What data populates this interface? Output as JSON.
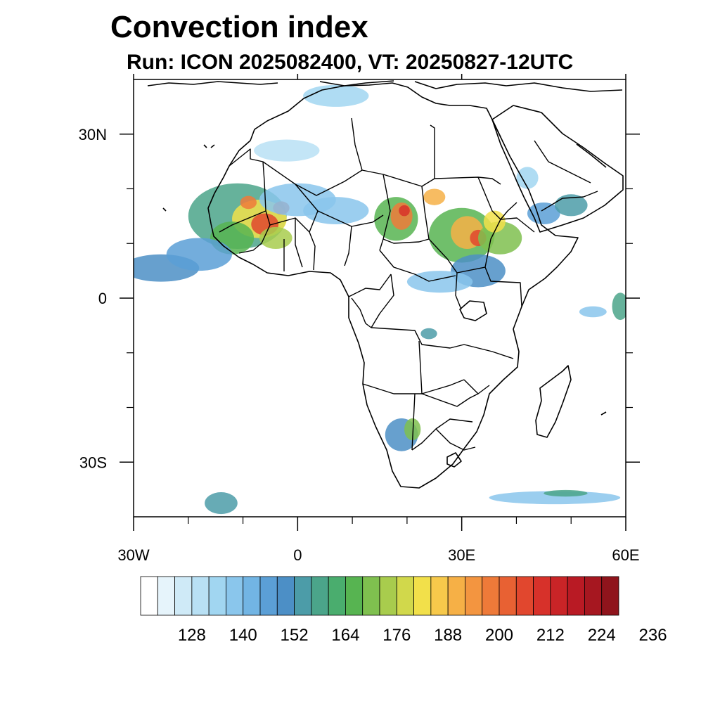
{
  "header": {
    "title": "Convection index",
    "subtitle": "Run: ICON 2025082400,  VT: 20250827-12UTC"
  },
  "map": {
    "projection": "cylindrical equidistant",
    "lon_range": [
      -30,
      60
    ],
    "lat_range": [
      -40,
      40
    ],
    "x_ticks": [
      {
        "value": -30,
        "label": "30W"
      },
      {
        "value": 0,
        "label": "0"
      },
      {
        "value": 30,
        "label": "30E"
      },
      {
        "value": 60,
        "label": "60E"
      }
    ],
    "y_ticks": [
      {
        "value": 30,
        "label": "30N"
      },
      {
        "value": 0,
        "label": "0"
      },
      {
        "value": -30,
        "label": "30S"
      }
    ],
    "minor_x_ticks": [
      -20,
      -10,
      10,
      20,
      40,
      50
    ],
    "minor_y_ticks": [
      -20,
      -10,
      10,
      20
    ]
  },
  "colorbar": {
    "colors": [
      "#ffffff",
      "#e6f4fb",
      "#cfeaf7",
      "#b8e0f4",
      "#a1d6f1",
      "#8ac6ec",
      "#72b5e4",
      "#5b9fd6",
      "#4c8fc6",
      "#4c9ca8",
      "#4ba58a",
      "#4aad6e",
      "#57b451",
      "#7fc04f",
      "#a8cc4d",
      "#d1d84b",
      "#f2e04a",
      "#f7c94b",
      "#f6b046",
      "#f39540",
      "#ee7a39",
      "#e86133",
      "#e1472e",
      "#d7312a",
      "#c92427",
      "#b91a24",
      "#a61720",
      "#8f141c"
    ],
    "tick_labels": [
      "128",
      "140",
      "152",
      "164",
      "176",
      "188",
      "200",
      "212",
      "224",
      "236"
    ],
    "label_start_index": 2,
    "label_every": 3
  },
  "field": {
    "blobs": [
      {
        "lon": -11,
        "lat": 15,
        "rlon": 9,
        "rlat": 6,
        "level": 10
      },
      {
        "lon": -7,
        "lat": 14.5,
        "rlon": 5,
        "rlat": 3.5,
        "level": 16
      },
      {
        "lon": -6,
        "lat": 13.5,
        "rlon": 2.5,
        "rlat": 2,
        "level": 22
      },
      {
        "lon": -3,
        "lat": 16.5,
        "rlon": 1.5,
        "rlat": 1.2,
        "level": 22
      },
      {
        "lon": -9,
        "lat": 17.5,
        "rlon": 1.5,
        "rlat": 1.2,
        "level": 20
      },
      {
        "lon": -12,
        "lat": 11,
        "rlon": 4,
        "rlat": 3,
        "level": 12
      },
      {
        "lon": -4,
        "lat": 11,
        "rlon": 3,
        "rlat": 2,
        "level": 14
      },
      {
        "lon": -25,
        "lat": 5.5,
        "rlon": 7,
        "rlat": 2.5,
        "level": 8
      },
      {
        "lon": -18,
        "lat": 8,
        "rlon": 6,
        "rlat": 3,
        "level": 7
      },
      {
        "lon": 0,
        "lat": 18,
        "rlon": 7,
        "rlat": 3,
        "level": 5
      },
      {
        "lon": 7,
        "lat": 16,
        "rlon": 6,
        "rlat": 2.5,
        "level": 5
      },
      {
        "lon": -2,
        "lat": 27,
        "rlon": 6,
        "rlat": 2,
        "level": 3
      },
      {
        "lon": 18,
        "lat": 14.5,
        "rlon": 4,
        "rlat": 4,
        "level": 12
      },
      {
        "lon": 19,
        "lat": 15,
        "rlon": 2,
        "rlat": 2.5,
        "level": 20
      },
      {
        "lon": 19.5,
        "lat": 16,
        "rlon": 1,
        "rlat": 1,
        "level": 23
      },
      {
        "lon": 30,
        "lat": 11.5,
        "rlon": 6,
        "rlat": 5,
        "level": 12
      },
      {
        "lon": 31,
        "lat": 12,
        "rlon": 3,
        "rlat": 3,
        "level": 18
      },
      {
        "lon": 33,
        "lat": 11,
        "rlon": 1.5,
        "rlat": 1.5,
        "level": 22
      },
      {
        "lon": 37,
        "lat": 11,
        "rlon": 4,
        "rlat": 3,
        "level": 13
      },
      {
        "lon": 36,
        "lat": 14,
        "rlon": 2,
        "rlat": 2,
        "level": 16
      },
      {
        "lon": 25,
        "lat": 18.5,
        "rlon": 2,
        "rlat": 1.5,
        "level": 18
      },
      {
        "lon": 33,
        "lat": 5,
        "rlon": 5,
        "rlat": 3,
        "level": 8
      },
      {
        "lon": 26,
        "lat": 3,
        "rlon": 6,
        "rlat": 2,
        "level": 5
      },
      {
        "lon": 45,
        "lat": 15.5,
        "rlon": 3,
        "rlat": 2,
        "level": 7
      },
      {
        "lon": 50,
        "lat": 17,
        "rlon": 3,
        "rlat": 2,
        "level": 9
      },
      {
        "lon": 42,
        "lat": 22,
        "rlon": 2,
        "rlat": 2,
        "level": 4
      },
      {
        "lon": 24,
        "lat": -6.5,
        "rlon": 1.5,
        "rlat": 1,
        "level": 9
      },
      {
        "lon": 19,
        "lat": -25,
        "rlon": 3,
        "rlat": 3,
        "level": 8
      },
      {
        "lon": 21,
        "lat": -24,
        "rlon": 1.5,
        "rlat": 2,
        "level": 13
      },
      {
        "lon": 47,
        "lat": -36.5,
        "rlon": 12,
        "rlat": 1.2,
        "level": 5
      },
      {
        "lon": 49,
        "lat": -35.7,
        "rlon": 4,
        "rlat": 0.6,
        "level": 10
      },
      {
        "lon": -14,
        "lat": -37.5,
        "rlon": 3,
        "rlat": 2,
        "level": 9
      },
      {
        "lon": 59,
        "lat": -1.5,
        "rlon": 1.5,
        "rlat": 2.5,
        "level": 10
      },
      {
        "lon": 54,
        "lat": -2.5,
        "rlon": 2.5,
        "rlat": 1,
        "level": 5
      },
      {
        "lon": 7,
        "lat": 37,
        "rlon": 6,
        "rlat": 2,
        "level": 4
      }
    ]
  }
}
